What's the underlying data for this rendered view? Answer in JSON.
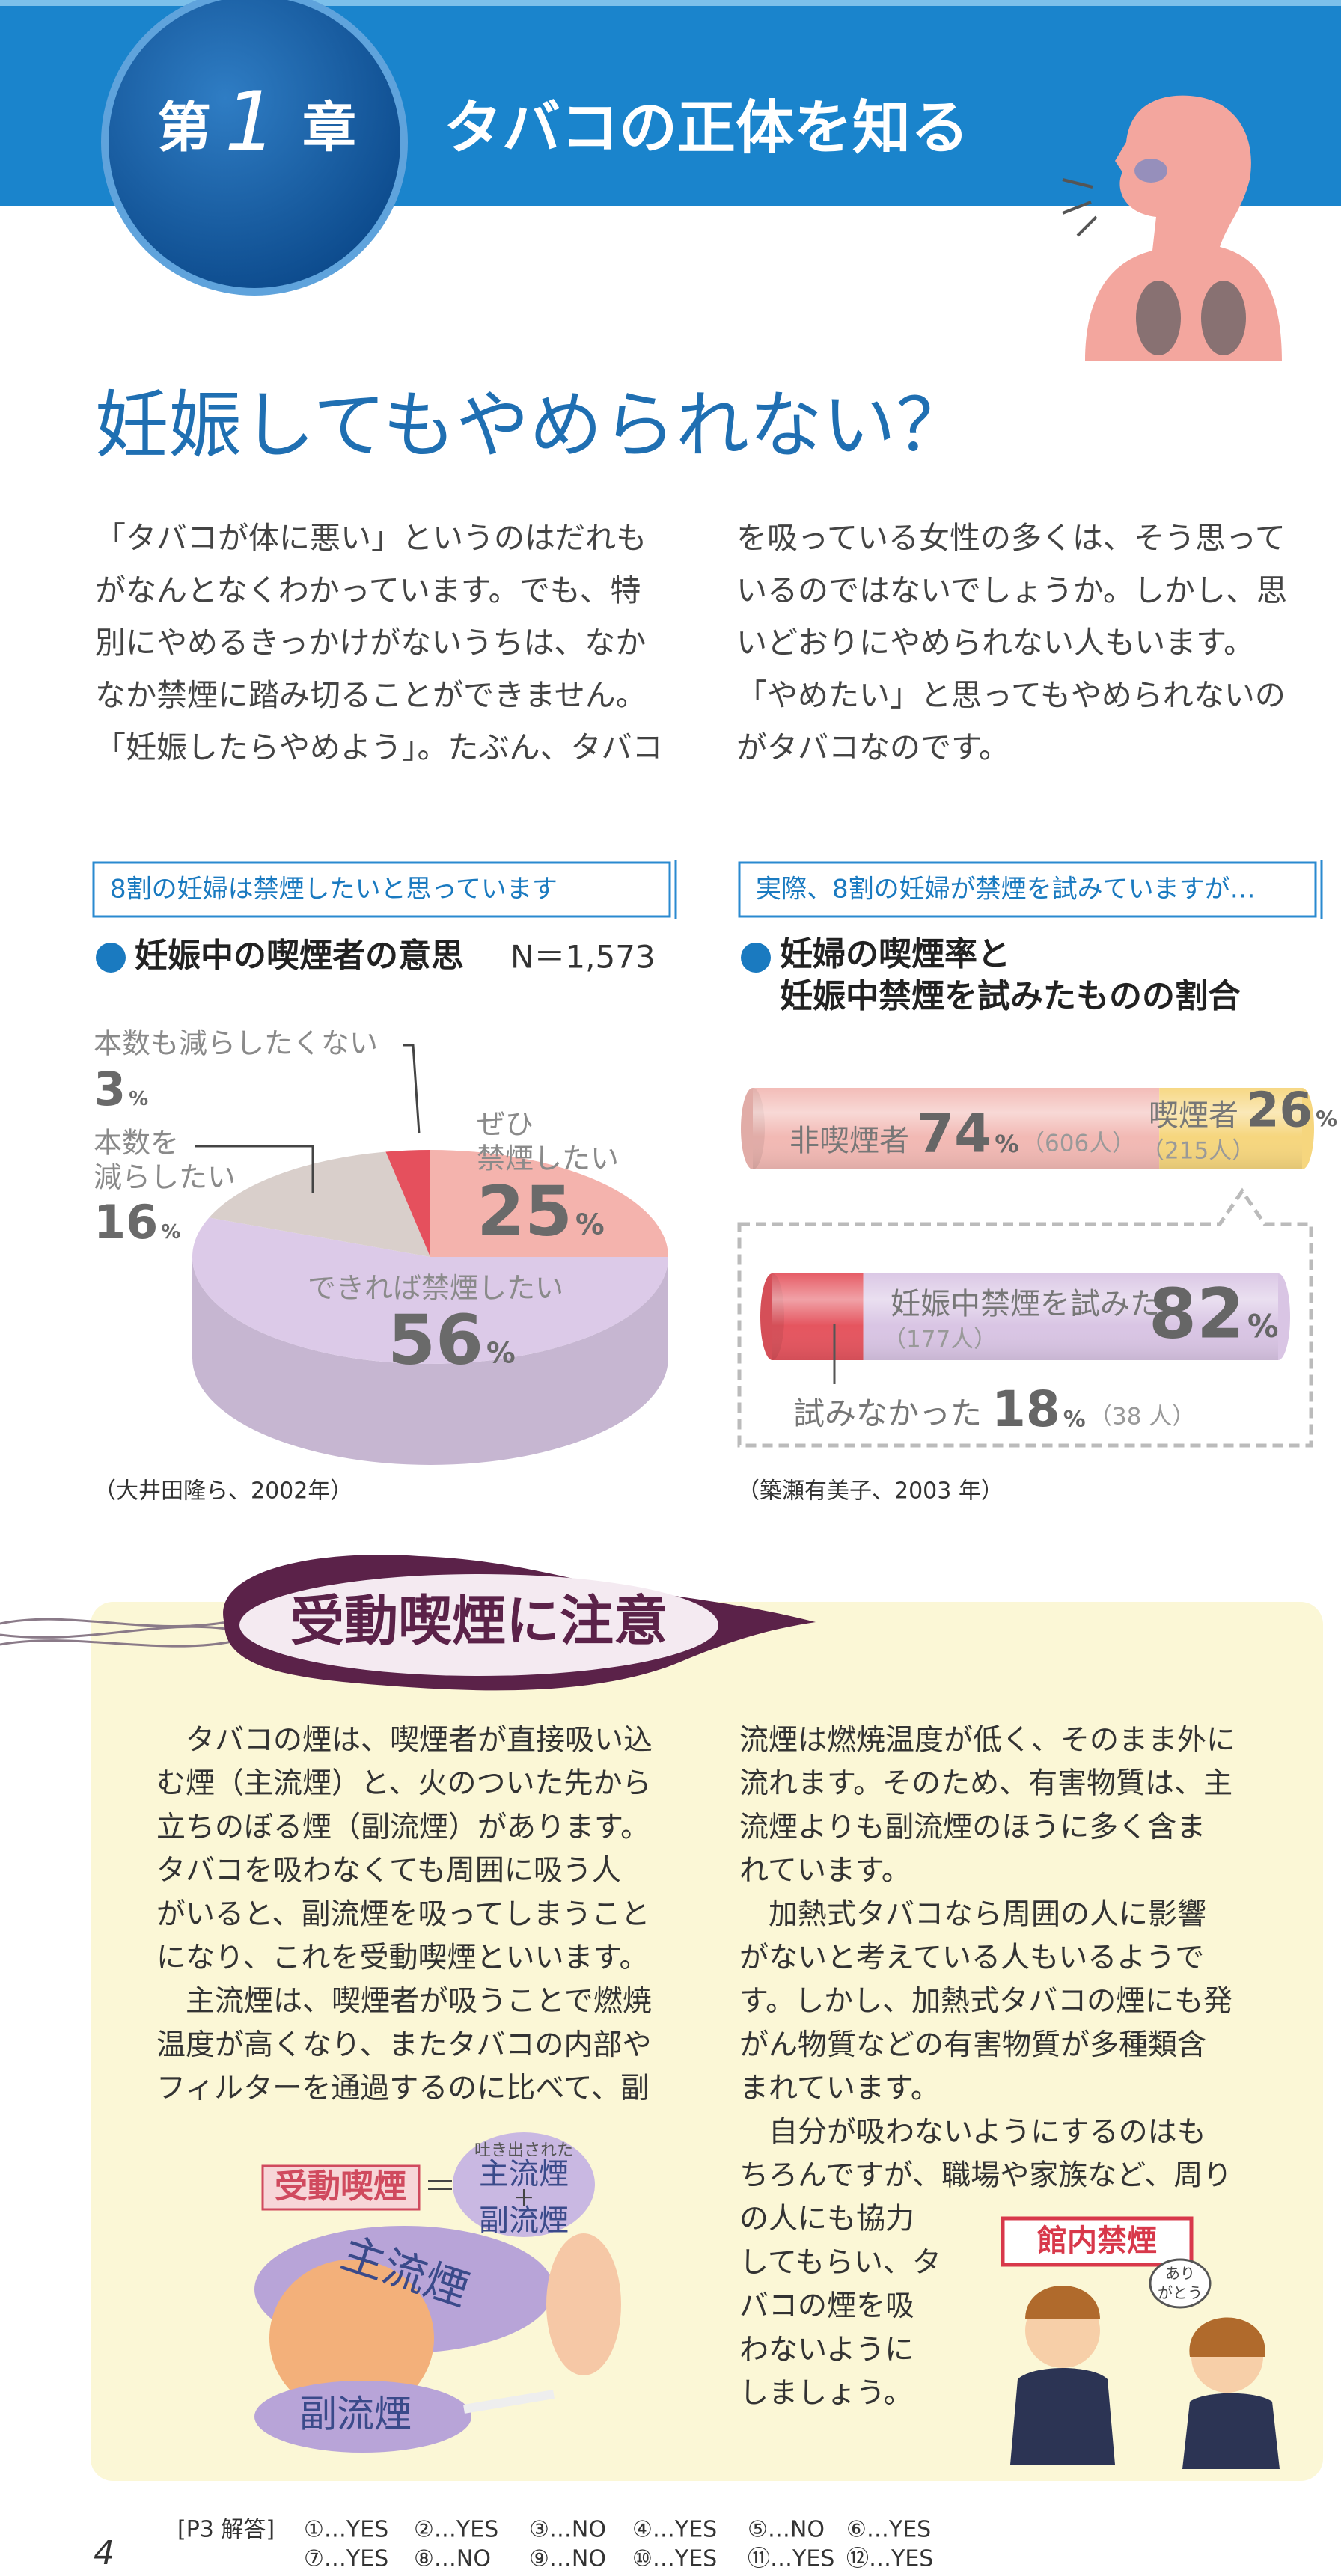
{
  "header": {
    "chapter_prefix": "第",
    "chapter_number": "1",
    "chapter_suffix": "章",
    "title": "タバコの正体を知る"
  },
  "heading": "妊娠してもやめられない？",
  "intro": {
    "left": [
      "「タバコが体に悪い」というのはだれも",
      "がなんとなくわかっています。でも、特",
      "別にやめるきっかけがないうちは、なか",
      "なか禁煙に踏み切ることができません。",
      "「妊娠したらやめよう」。たぶん、タバコ"
    ],
    "right": [
      "を吸っている女性の多くは、そう思って",
      "いるのではないでしょうか。しかし、思",
      "いどおりにやめられない人もいます。",
      "「やめたい」と思ってもやめられないの",
      "がタバコなのです。"
    ]
  },
  "chart_data": [
    {
      "type": "pie",
      "banner": "8割の妊婦は禁煙したいと思っています",
      "title": "妊娠中の喫煙者の意思",
      "note": "N＝1,573",
      "unit": "%",
      "label_lines": [
        [
          "ぜひ",
          "禁煙したい"
        ],
        [
          "できれば禁煙したい"
        ],
        [
          "本数を",
          "減らしたい"
        ],
        [
          "本数も減らしたくない"
        ]
      ],
      "values": [
        25,
        56,
        16,
        3
      ],
      "colors": [
        "#f4b3ad",
        "#dccae8",
        "#d9cfcb",
        "#e5505d"
      ],
      "source": "（大井田隆ら、2002年）"
    },
    {
      "type": "bar",
      "banner": "実際、8割の妊婦が禁煙を試みていますが…",
      "title_lines": [
        "妊婦の喫煙率と",
        "妊娠中禁煙を試みたものの割合"
      ],
      "unit": "%",
      "bars": [
        {
          "segments": [
            {
              "name": "非喫煙者",
              "value": 74,
              "count_label": "（606人）",
              "color": "#f2b9b4"
            },
            {
              "name": "喫煙者",
              "value": 26,
              "count_label": "（215人）",
              "color": "#f6d67e"
            }
          ]
        },
        {
          "segments": [
            {
              "name": "試みなかった",
              "value": 18,
              "count_label": "（38 人）",
              "color": "#e5555f"
            },
            {
              "name": "妊娠中禁煙を試みた",
              "value": 82,
              "count_label": "（177人）",
              "color": "#d9c5e4"
            }
          ]
        }
      ],
      "source": "（築瀬有美子、2003 年）"
    }
  ],
  "section": {
    "title": "受動喫煙に注意",
    "left": [
      "　タバコの煙は、喫煙者が直接吸い込",
      "む煙（主流煙）と、火のついた先から",
      "立ちのぼる煙（副流煙）があります。",
      "タバコを吸わなくても周囲に吸う人",
      "がいると、副流煙を吸ってしまうこと",
      "になり、これを受動喫煙といいます。",
      "　主流煙は、喫煙者が吸うことで燃焼",
      "温度が高くなり、またタバコの内部や",
      "フィルターを通過するのに比べて、副"
    ],
    "right": [
      "流煙は燃焼温度が低く、そのまま外に",
      "流れます。そのため、有害物質は、主",
      "流煙よりも副流煙のほうに多く含ま",
      "れています。",
      "　加熱式タバコなら周囲の人に影響",
      "がないと考えている人もいるようで",
      "す。しかし、加熱式タバコの煙にも発",
      "がん物質などの有害物質が多種類含",
      "まれています。",
      "　自分が吸わないようにするのはも",
      "ちろんですが、職場や家族など、周り",
      "の人にも協力",
      "してもらい、タ",
      "バコの煙を吸",
      "わないように",
      "しましょう。"
    ]
  },
  "illustration": {
    "lhs": "受動喫煙",
    "equals": "＝",
    "exhaled": "吐き出された",
    "main": "主流煙",
    "plus": "＋",
    "side": "副流煙",
    "cloud_main": "主流煙",
    "cloud_side": "副流煙",
    "sign": "館内禁煙",
    "thanks": [
      "あり",
      "がとう"
    ]
  },
  "footer": {
    "page": "4",
    "label": "[P3 解答]",
    "answers": [
      "①…YES",
      "②…YES",
      "③…NO",
      "④…YES",
      "⑤…NO",
      "⑥…YES",
      "⑦…YES",
      "⑧…NO",
      "⑨…NO",
      "⑩…YES",
      "⑪…YES",
      "⑫…YES"
    ]
  }
}
